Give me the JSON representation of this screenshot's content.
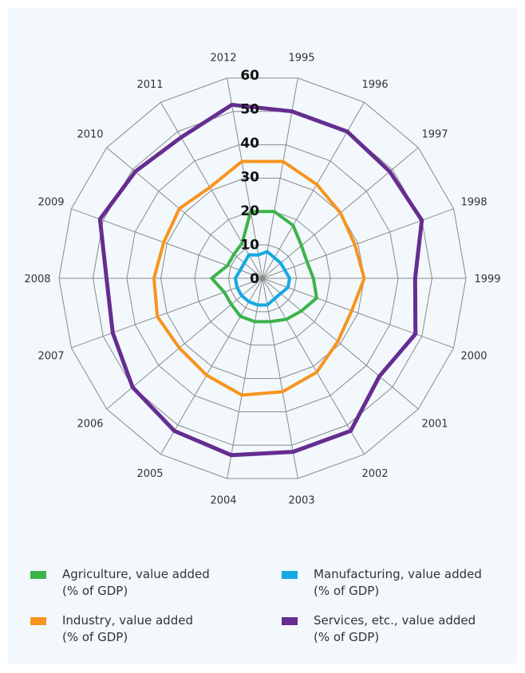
{
  "chart_data": {
    "type": "radar",
    "categories": [
      "1995",
      "1996",
      "1997",
      "1998",
      "1999",
      "2000",
      "2001",
      "2002",
      "2003",
      "2004",
      "2005",
      "2006",
      "2007",
      "2008",
      "2009",
      "2010",
      "2011",
      "2012"
    ],
    "radial_ticks": [
      "0",
      "10",
      "20",
      "30",
      "40",
      "50",
      "60"
    ],
    "rlim": [
      0,
      60
    ],
    "grid": true,
    "legend_position": "bottom",
    "series": [
      {
        "name": "Agriculture, value added\n(% of GDP)",
        "color": "#3db34a",
        "values": [
          20,
          18,
          15,
          14,
          15,
          17,
          15,
          14,
          13,
          13,
          13,
          12,
          12,
          15,
          11,
          11,
          12,
          20
        ]
      },
      {
        "name": "Industry, value added\n(% of GDP)",
        "color": "#f7941d",
        "values": [
          35,
          32,
          30,
          29,
          30,
          28,
          29,
          32,
          34,
          35,
          33,
          32,
          33,
          32,
          31,
          32,
          31,
          35
        ]
      },
      {
        "name": "Manufacturing, value added\n(% of GDP)",
        "color": "#17a8e0",
        "values": [
          8,
          7,
          7,
          7,
          8,
          8,
          7,
          7,
          8,
          8,
          8,
          8,
          8,
          8,
          7,
          7,
          8,
          7
        ]
      },
      {
        "name": "Services, etc., value added\n(% of GDP)",
        "color": "#662d91",
        "values": [
          50,
          50,
          49,
          50,
          45,
          48,
          45,
          52,
          52,
          53,
          52,
          50,
          47,
          46,
          51,
          49,
          48,
          52
        ]
      }
    ]
  }
}
